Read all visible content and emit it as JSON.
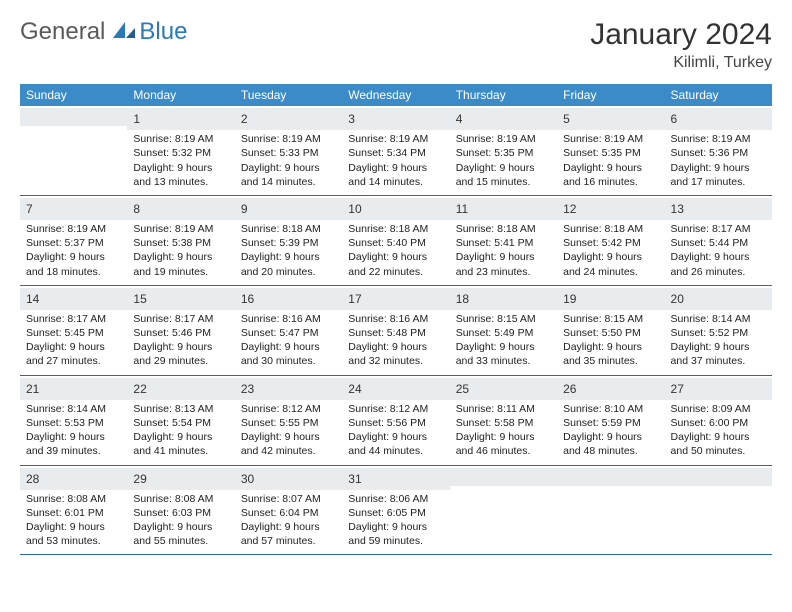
{
  "logo": {
    "general": "General",
    "blue": "Blue"
  },
  "title": "January 2024",
  "location": "Kilimli, Turkey",
  "day_headers": [
    "Sunday",
    "Monday",
    "Tuesday",
    "Wednesday",
    "Thursday",
    "Friday",
    "Saturday"
  ],
  "colors": {
    "header_bg": "#3b8bc8",
    "header_text": "#ffffff",
    "daynum_bg": "#e9ecef",
    "row_border": "#2a6aa0",
    "logo_blue": "#2a7ab9",
    "logo_gray": "#5a5a5a"
  },
  "weeks": [
    [
      {
        "n": "",
        "lines": []
      },
      {
        "n": "1",
        "lines": [
          "Sunrise: 8:19 AM",
          "Sunset: 5:32 PM",
          "Daylight: 9 hours",
          "and 13 minutes."
        ]
      },
      {
        "n": "2",
        "lines": [
          "Sunrise: 8:19 AM",
          "Sunset: 5:33 PM",
          "Daylight: 9 hours",
          "and 14 minutes."
        ]
      },
      {
        "n": "3",
        "lines": [
          "Sunrise: 8:19 AM",
          "Sunset: 5:34 PM",
          "Daylight: 9 hours",
          "and 14 minutes."
        ]
      },
      {
        "n": "4",
        "lines": [
          "Sunrise: 8:19 AM",
          "Sunset: 5:35 PM",
          "Daylight: 9 hours",
          "and 15 minutes."
        ]
      },
      {
        "n": "5",
        "lines": [
          "Sunrise: 8:19 AM",
          "Sunset: 5:35 PM",
          "Daylight: 9 hours",
          "and 16 minutes."
        ]
      },
      {
        "n": "6",
        "lines": [
          "Sunrise: 8:19 AM",
          "Sunset: 5:36 PM",
          "Daylight: 9 hours",
          "and 17 minutes."
        ]
      }
    ],
    [
      {
        "n": "7",
        "lines": [
          "Sunrise: 8:19 AM",
          "Sunset: 5:37 PM",
          "Daylight: 9 hours",
          "and 18 minutes."
        ]
      },
      {
        "n": "8",
        "lines": [
          "Sunrise: 8:19 AM",
          "Sunset: 5:38 PM",
          "Daylight: 9 hours",
          "and 19 minutes."
        ]
      },
      {
        "n": "9",
        "lines": [
          "Sunrise: 8:18 AM",
          "Sunset: 5:39 PM",
          "Daylight: 9 hours",
          "and 20 minutes."
        ]
      },
      {
        "n": "10",
        "lines": [
          "Sunrise: 8:18 AM",
          "Sunset: 5:40 PM",
          "Daylight: 9 hours",
          "and 22 minutes."
        ]
      },
      {
        "n": "11",
        "lines": [
          "Sunrise: 8:18 AM",
          "Sunset: 5:41 PM",
          "Daylight: 9 hours",
          "and 23 minutes."
        ]
      },
      {
        "n": "12",
        "lines": [
          "Sunrise: 8:18 AM",
          "Sunset: 5:42 PM",
          "Daylight: 9 hours",
          "and 24 minutes."
        ]
      },
      {
        "n": "13",
        "lines": [
          "Sunrise: 8:17 AM",
          "Sunset: 5:44 PM",
          "Daylight: 9 hours",
          "and 26 minutes."
        ]
      }
    ],
    [
      {
        "n": "14",
        "lines": [
          "Sunrise: 8:17 AM",
          "Sunset: 5:45 PM",
          "Daylight: 9 hours",
          "and 27 minutes."
        ]
      },
      {
        "n": "15",
        "lines": [
          "Sunrise: 8:17 AM",
          "Sunset: 5:46 PM",
          "Daylight: 9 hours",
          "and 29 minutes."
        ]
      },
      {
        "n": "16",
        "lines": [
          "Sunrise: 8:16 AM",
          "Sunset: 5:47 PM",
          "Daylight: 9 hours",
          "and 30 minutes."
        ]
      },
      {
        "n": "17",
        "lines": [
          "Sunrise: 8:16 AM",
          "Sunset: 5:48 PM",
          "Daylight: 9 hours",
          "and 32 minutes."
        ]
      },
      {
        "n": "18",
        "lines": [
          "Sunrise: 8:15 AM",
          "Sunset: 5:49 PM",
          "Daylight: 9 hours",
          "and 33 minutes."
        ]
      },
      {
        "n": "19",
        "lines": [
          "Sunrise: 8:15 AM",
          "Sunset: 5:50 PM",
          "Daylight: 9 hours",
          "and 35 minutes."
        ]
      },
      {
        "n": "20",
        "lines": [
          "Sunrise: 8:14 AM",
          "Sunset: 5:52 PM",
          "Daylight: 9 hours",
          "and 37 minutes."
        ]
      }
    ],
    [
      {
        "n": "21",
        "lines": [
          "Sunrise: 8:14 AM",
          "Sunset: 5:53 PM",
          "Daylight: 9 hours",
          "and 39 minutes."
        ]
      },
      {
        "n": "22",
        "lines": [
          "Sunrise: 8:13 AM",
          "Sunset: 5:54 PM",
          "Daylight: 9 hours",
          "and 41 minutes."
        ]
      },
      {
        "n": "23",
        "lines": [
          "Sunrise: 8:12 AM",
          "Sunset: 5:55 PM",
          "Daylight: 9 hours",
          "and 42 minutes."
        ]
      },
      {
        "n": "24",
        "lines": [
          "Sunrise: 8:12 AM",
          "Sunset: 5:56 PM",
          "Daylight: 9 hours",
          "and 44 minutes."
        ]
      },
      {
        "n": "25",
        "lines": [
          "Sunrise: 8:11 AM",
          "Sunset: 5:58 PM",
          "Daylight: 9 hours",
          "and 46 minutes."
        ]
      },
      {
        "n": "26",
        "lines": [
          "Sunrise: 8:10 AM",
          "Sunset: 5:59 PM",
          "Daylight: 9 hours",
          "and 48 minutes."
        ]
      },
      {
        "n": "27",
        "lines": [
          "Sunrise: 8:09 AM",
          "Sunset: 6:00 PM",
          "Daylight: 9 hours",
          "and 50 minutes."
        ]
      }
    ],
    [
      {
        "n": "28",
        "lines": [
          "Sunrise: 8:08 AM",
          "Sunset: 6:01 PM",
          "Daylight: 9 hours",
          "and 53 minutes."
        ]
      },
      {
        "n": "29",
        "lines": [
          "Sunrise: 8:08 AM",
          "Sunset: 6:03 PM",
          "Daylight: 9 hours",
          "and 55 minutes."
        ]
      },
      {
        "n": "30",
        "lines": [
          "Sunrise: 8:07 AM",
          "Sunset: 6:04 PM",
          "Daylight: 9 hours",
          "and 57 minutes."
        ]
      },
      {
        "n": "31",
        "lines": [
          "Sunrise: 8:06 AM",
          "Sunset: 6:05 PM",
          "Daylight: 9 hours",
          "and 59 minutes."
        ]
      },
      {
        "n": "",
        "lines": []
      },
      {
        "n": "",
        "lines": []
      },
      {
        "n": "",
        "lines": []
      }
    ]
  ]
}
